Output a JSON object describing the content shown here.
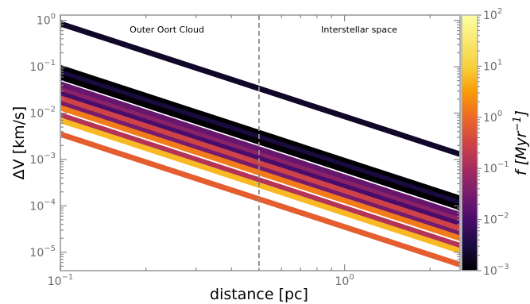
{
  "chart_data": {
    "type": "line",
    "xlabel": "distance [pc]",
    "ylabel": "ΔV [km/s]",
    "x_scale": "log",
    "y_scale": "log",
    "xlim": [
      0.1,
      2.55
    ],
    "ylim": [
      4e-06,
      1.3
    ],
    "x_ticks": [
      {
        "value": 0.1,
        "label": "10^-1"
      },
      {
        "value": 1,
        "label": "10^0"
      }
    ],
    "y_ticks": [
      {
        "value": 1,
        "label": "10^0"
      },
      {
        "value": 0.1,
        "label": "10^-1"
      },
      {
        "value": 0.01,
        "label": "10^-2"
      },
      {
        "value": 0.001,
        "label": "10^-3"
      },
      {
        "value": 0.0001,
        "label": "10^-4"
      },
      {
        "value": 1e-05,
        "label": "10^-5"
      }
    ],
    "divider_x": 0.5,
    "annotations": [
      "Outer Oort Cloud",
      "Interstellar space"
    ],
    "colorbar": {
      "label": "f [Myr^-1]",
      "scale": "log",
      "range": [
        0.001,
        100
      ],
      "colormap": "inferno",
      "ticks": [
        {
          "value": 100,
          "label": "10^2"
        },
        {
          "value": 10,
          "label": "10^1"
        },
        {
          "value": 1,
          "label": "10^0"
        },
        {
          "value": 0.1,
          "label": "10^-1"
        },
        {
          "value": 0.01,
          "label": "10^-2"
        },
        {
          "value": 0.001,
          "label": "10^-3"
        }
      ]
    },
    "series": [
      {
        "x": [
          0.1,
          2.55
        ],
        "y": [
          0.85,
          0.0013
        ],
        "f": 0.002
      },
      {
        "x": [
          0.1,
          2.55
        ],
        "y": [
          0.095,
          0.000145
        ],
        "f": 0.001
      },
      {
        "x": [
          0.1,
          2.55
        ],
        "y": [
          0.075,
          0.000115
        ],
        "f": 0.003
      },
      {
        "x": [
          0.1,
          2.55
        ],
        "y": [
          0.06,
          9.2e-05
        ],
        "f": 0.001
      },
      {
        "x": [
          0.1,
          2.55
        ],
        "y": [
          0.042,
          6.4e-05
        ],
        "f": 0.02
      },
      {
        "x": [
          0.1,
          2.55
        ],
        "y": [
          0.032,
          4.9e-05
        ],
        "f": 0.05
      },
      {
        "x": [
          0.1,
          2.55
        ],
        "y": [
          0.026,
          4e-05
        ],
        "f": 0.01
      },
      {
        "x": [
          0.1,
          2.55
        ],
        "y": [
          0.021,
          3.2e-05
        ],
        "f": 0.3
      },
      {
        "x": [
          0.1,
          2.55
        ],
        "y": [
          0.016,
          2.45e-05
        ],
        "f": 0.03
      },
      {
        "x": [
          0.1,
          2.55
        ],
        "y": [
          0.013,
          2e-05
        ],
        "f": 1.5
      },
      {
        "x": [
          0.1,
          2.55
        ],
        "y": [
          0.009,
          1.38e-05
        ],
        "f": 0.15
      },
      {
        "x": [
          0.1,
          2.55
        ],
        "y": [
          0.007,
          1.07e-05
        ],
        "f": 6
      },
      {
        "x": [
          0.1,
          2.55
        ],
        "y": [
          0.0035,
          5.4e-06
        ],
        "f": 0.7
      }
    ]
  }
}
